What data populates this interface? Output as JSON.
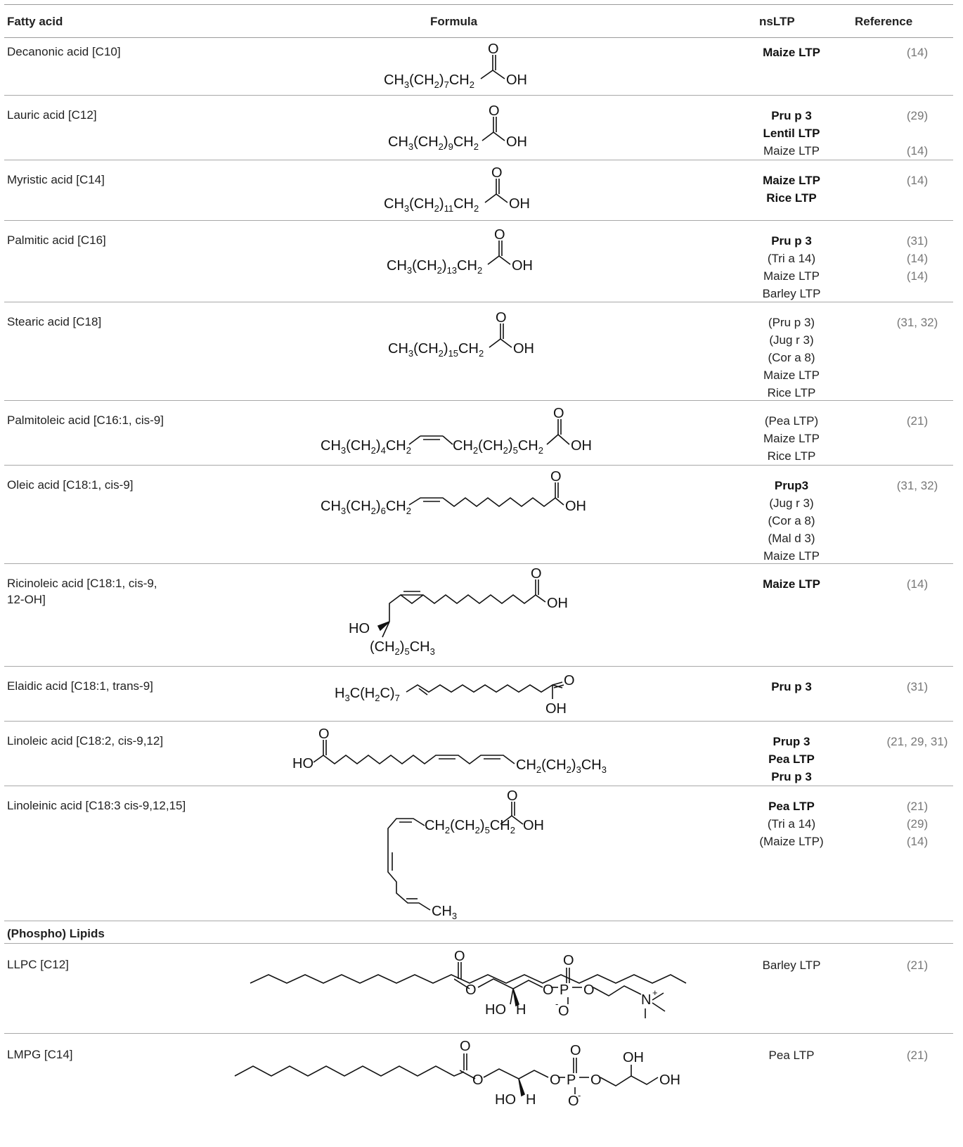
{
  "header": {
    "col_fatty_acid": "Fatty acid",
    "col_formula": "Formula",
    "col_nsltp": "nsLTP",
    "col_reference": "Reference"
  },
  "rows": [
    {
      "name": "Decanonic acid [C10]",
      "formula": "CH3(CH2)7CH2COOH",
      "ltps": [
        {
          "t": "Maize LTP",
          "bold": true
        }
      ],
      "refs": [
        "(14)"
      ]
    },
    {
      "name": "Lauric acid [C12]",
      "formula": "CH3(CH2)9CH2COOH",
      "ltps": [
        {
          "t": "Pru p 3",
          "bold": true
        },
        {
          "t": "Lentil LTP",
          "bold": true
        },
        {
          "t": "Maize LTP",
          "bold": false
        }
      ],
      "refs": [
        "(29)",
        "",
        "(14)"
      ]
    },
    {
      "name": "Myristic acid [C14]",
      "formula": "CH3(CH2)11CH2COOH",
      "ltps": [
        {
          "t": "Maize LTP",
          "bold": true
        },
        {
          "t": "Rice LTP",
          "bold": true
        }
      ],
      "refs": [
        "(14)"
      ]
    },
    {
      "name": "Palmitic acid [C16]",
      "formula": "CH3(CH2)13CH2COOH",
      "ltps": [
        {
          "t": "Pru p 3",
          "bold": true
        },
        {
          "t": "(Tri a 14)",
          "bold": false
        },
        {
          "t": "Maize LTP",
          "bold": false
        },
        {
          "t": "Barley LTP",
          "bold": false
        }
      ],
      "refs": [
        "(31)",
        "(14)",
        "(14)"
      ]
    },
    {
      "name": "Stearic acid [C18]",
      "formula": "CH3(CH2)15CH2COOH",
      "ltps": [
        {
          "t": "(Pru p 3)",
          "bold": false
        },
        {
          "t": "(Jug r 3)",
          "bold": false
        },
        {
          "t": "(Cor a 8)",
          "bold": false
        },
        {
          "t": "Maize LTP",
          "bold": false
        },
        {
          "t": "Rice LTP",
          "bold": false
        }
      ],
      "refs": [
        "(31, 32)"
      ]
    },
    {
      "name": "Palmitoleic acid [C16:1, cis-9]",
      "formula": "CH3(CH2)4CH2CH=CHCH2(CH2)5CH2COOH",
      "ltps": [
        {
          "t": "(Pea LTP)",
          "bold": false
        },
        {
          "t": "Maize LTP",
          "bold": false
        },
        {
          "t": "Rice LTP",
          "bold": false
        }
      ],
      "refs": [
        "(21)"
      ]
    },
    {
      "name": "Oleic acid [C18:1, cis-9]",
      "formula": "CH3(CH2)6CH2 skeletal OH",
      "ltps": [
        {
          "t": "Prup3",
          "bold": true
        },
        {
          "t": "(Jug r 3)",
          "bold": false
        },
        {
          "t": "(Cor a 8)",
          "bold": false
        },
        {
          "t": "(Mal d 3)",
          "bold": false
        },
        {
          "t": "Maize LTP",
          "bold": false
        }
      ],
      "refs": [
        "(31, 32)"
      ]
    },
    {
      "name": "Ricinoleic acid [C18:1, cis-9, 12-OH]",
      "formula": "skeletal HO (CH2)5CH3 OH",
      "ltps": [
        {
          "t": "Maize LTP",
          "bold": true
        }
      ],
      "refs": [
        "(14)"
      ]
    },
    {
      "name": "Elaidic acid [C18:1, trans-9]",
      "formula": "H3C(H2C)7 skeletal OH",
      "ltps": [
        {
          "t": "Pru p 3",
          "bold": true
        }
      ],
      "refs": [
        "(31)"
      ]
    },
    {
      "name": "Linoleic acid [C18:2, cis-9,12]",
      "formula": "HO skeletal CH2(CH2)3CH3",
      "ltps": [
        {
          "t": "Prup 3",
          "bold": true
        },
        {
          "t": "Pea LTP",
          "bold": true
        },
        {
          "t": "Pru p 3",
          "bold": true
        }
      ],
      "refs": [
        "(21, 29, 31)"
      ]
    },
    {
      "name": "Linoleinic acid [C18:3 cis-9,12,15]",
      "formula": "skeletal CH2(CH2)5CH2 OH CH3",
      "ltps": [
        {
          "t": "Pea LTP",
          "bold": true
        },
        {
          "t": "(Tri a 14)",
          "bold": false
        },
        {
          "t": "(Maize LTP)",
          "bold": false
        }
      ],
      "refs": [
        "(21)",
        "(29)",
        "(14)"
      ]
    }
  ],
  "section": "(Phospho) Lipids",
  "lipid_rows": [
    {
      "name": "LLPC [C12]",
      "ltps": [
        {
          "t": "Barley LTP",
          "bold": false
        }
      ],
      "refs": [
        "(21)"
      ]
    },
    {
      "name": "LMPG [C14]",
      "ltps": [
        {
          "t": "Pea LTP",
          "bold": false
        }
      ],
      "refs": [
        "(21)"
      ]
    }
  ],
  "formula_labels": {
    "O": "O",
    "OH": "OH",
    "HO": "HO",
    "H": "H",
    "P": "P",
    "N": "N",
    "plus": "+",
    "minus": "-",
    "ch3": "CH",
    "ch2": "CH",
    "three": "3",
    "two": "2",
    "seven": "7",
    "nine": "9",
    "eleven": "11",
    "thirteen": "13",
    "fifteen": "15",
    "four": "4",
    "five": "5",
    "six": "6",
    "ch2_ch2": "(CH",
    "close": ")",
    "h3c": "H",
    "h2c": "(H",
    "c": "C",
    "ch3_end": "CH"
  }
}
